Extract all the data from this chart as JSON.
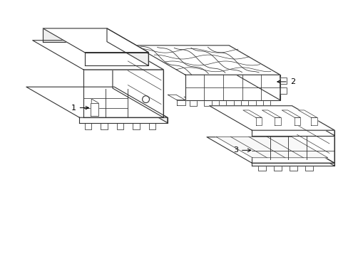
{
  "background_color": "#ffffff",
  "line_color": "#333333",
  "line_width": 0.8,
  "label_color": "#000000",
  "label_fontsize": 8,
  "arrow_color": "#000000",
  "labels": [
    "1",
    "2",
    "3"
  ],
  "figsize": [
    4.89,
    3.6
  ],
  "dpi": 100
}
